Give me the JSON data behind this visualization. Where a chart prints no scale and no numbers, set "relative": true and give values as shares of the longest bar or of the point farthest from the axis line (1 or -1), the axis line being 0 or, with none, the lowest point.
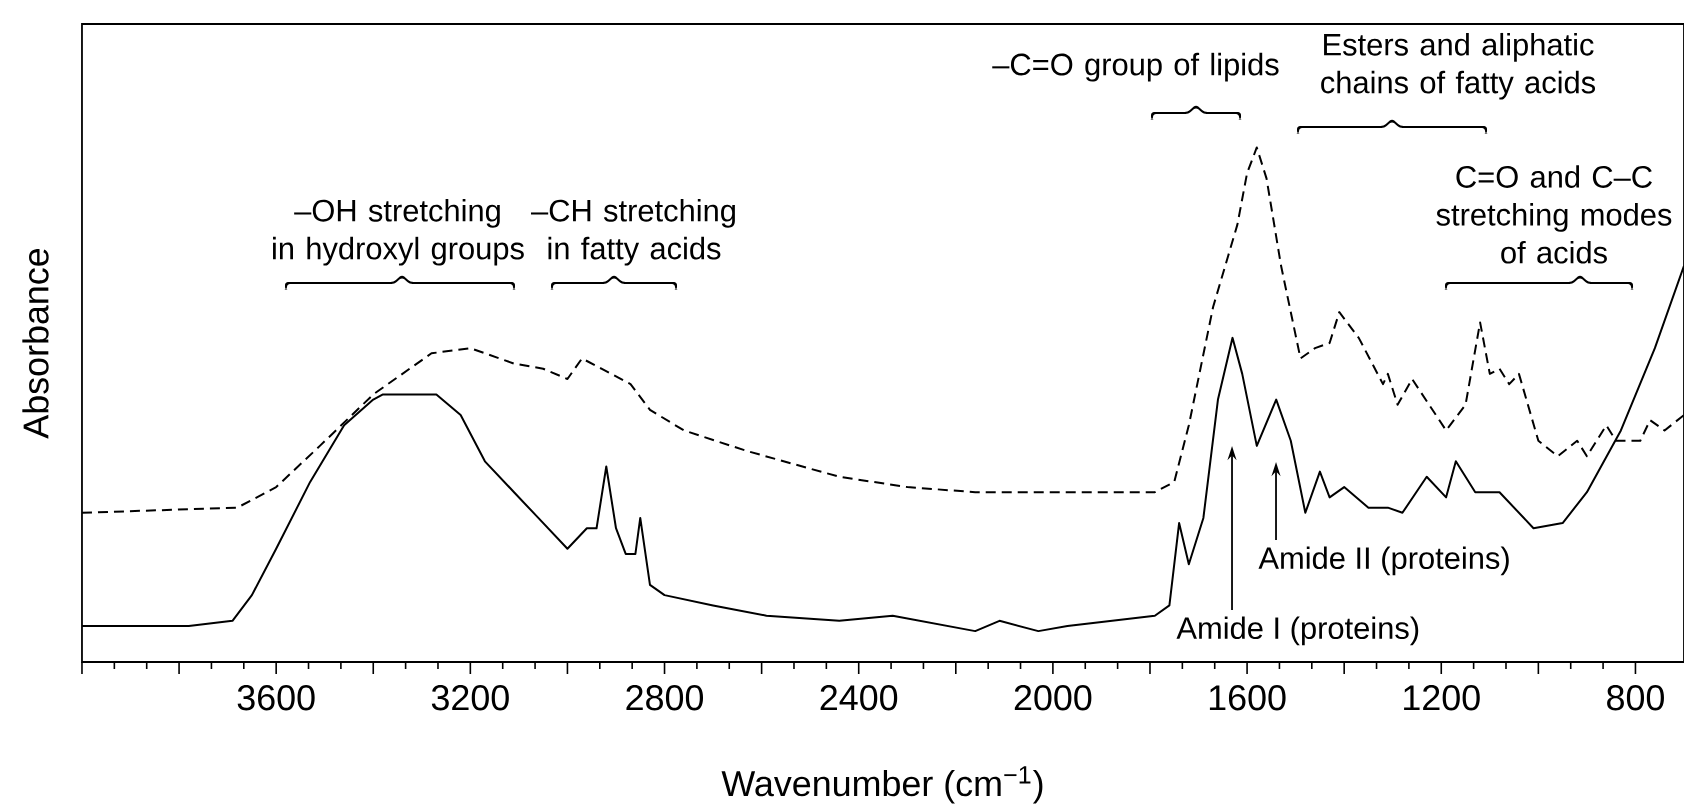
{
  "chart_data": {
    "type": "line",
    "relative": true,
    "xlabel": "Wavenumber (cm$^{−1}$)",
    "ylabel": "Absorbance",
    "xlim": [
      4000,
      700
    ],
    "xticks": [
      {
        "value": 4000,
        "label": null
      },
      {
        "value": 3800,
        "label": null
      },
      3600,
      {
        "value": 3400,
        "label": null
      },
      3200,
      {
        "value": 3000,
        "label": null
      },
      2800,
      {
        "value": 2600,
        "label": null
      },
      2400,
      {
        "value": 2200,
        "label": null
      },
      2000,
      {
        "value": 1800,
        "label": null
      },
      1600,
      {
        "value": 1400,
        "label": null
      },
      1200,
      {
        "value": 1000,
        "label": null
      },
      800
    ],
    "series": [
      {
        "color": "#000000",
        "line_style": "solid",
        "x": [
          4000,
          3780,
          3690,
          3650,
          3600,
          3530,
          3460,
          3400,
          3380,
          3270,
          3220,
          3170,
          3110,
          3060,
          3000,
          2960,
          2940,
          2920,
          2900,
          2880,
          2860,
          2850,
          2830,
          2800,
          2700,
          2590,
          2440,
          2330,
          2160,
          2110,
          2030,
          1970,
          1790,
          1760,
          1740,
          1720,
          1690,
          1660,
          1630,
          1610,
          1580,
          1540,
          1510,
          1480,
          1450,
          1430,
          1400,
          1350,
          1310,
          1280,
          1230,
          1190,
          1170,
          1130,
          1080,
          1010,
          950,
          900,
          830,
          760,
          700
        ],
        "values": [
          0.07,
          0.07,
          0.08,
          0.13,
          0.22,
          0.35,
          0.46,
          0.51,
          0.52,
          0.52,
          0.48,
          0.39,
          0.33,
          0.28,
          0.22,
          0.26,
          0.26,
          0.38,
          0.26,
          0.21,
          0.21,
          0.28,
          0.15,
          0.13,
          0.11,
          0.09,
          0.08,
          0.09,
          0.06,
          0.08,
          0.06,
          0.07,
          0.09,
          0.11,
          0.27,
          0.19,
          0.28,
          0.51,
          0.63,
          0.56,
          0.42,
          0.51,
          0.43,
          0.29,
          0.37,
          0.32,
          0.34,
          0.3,
          0.3,
          0.29,
          0.36,
          0.32,
          0.39,
          0.33,
          0.33,
          0.26,
          0.27,
          0.33,
          0.45,
          0.61,
          0.77
        ]
      },
      {
        "color": "#000000",
        "line_style": "dashed",
        "x": [
          4000,
          3680,
          3600,
          3510,
          3400,
          3280,
          3200,
          3110,
          3050,
          3000,
          2970,
          2930,
          2870,
          2830,
          2760,
          2630,
          2440,
          2300,
          2160,
          1790,
          1750,
          1720,
          1670,
          1620,
          1600,
          1580,
          1560,
          1530,
          1490,
          1460,
          1430,
          1410,
          1370,
          1320,
          1310,
          1290,
          1260,
          1190,
          1150,
          1120,
          1100,
          1080,
          1060,
          1040,
          1000,
          960,
          920,
          900,
          860,
          840,
          790,
          770,
          740,
          700
        ],
        "values": [
          0.29,
          0.3,
          0.34,
          0.42,
          0.52,
          0.6,
          0.61,
          0.58,
          0.57,
          0.55,
          0.59,
          0.57,
          0.54,
          0.49,
          0.45,
          0.41,
          0.36,
          0.34,
          0.33,
          0.33,
          0.35,
          0.46,
          0.69,
          0.85,
          0.95,
          1.0,
          0.94,
          0.77,
          0.59,
          0.61,
          0.62,
          0.68,
          0.63,
          0.54,
          0.56,
          0.5,
          0.55,
          0.45,
          0.5,
          0.66,
          0.56,
          0.57,
          0.54,
          0.56,
          0.43,
          0.4,
          0.43,
          0.4,
          0.46,
          0.43,
          0.43,
          0.47,
          0.45,
          0.48
        ]
      }
    ],
    "annotations": [
      "–OH stretching\nin hydroxyl groups",
      "–CH stretching\nin fatty acids",
      "–C=O group of lipids",
      "Esters and aliphatic\nchains of fatty acids",
      "C=O and C–C\nstretching modes\nof acids",
      "Amide I (proteins)",
      "Amide II (proteins)"
    ]
  }
}
